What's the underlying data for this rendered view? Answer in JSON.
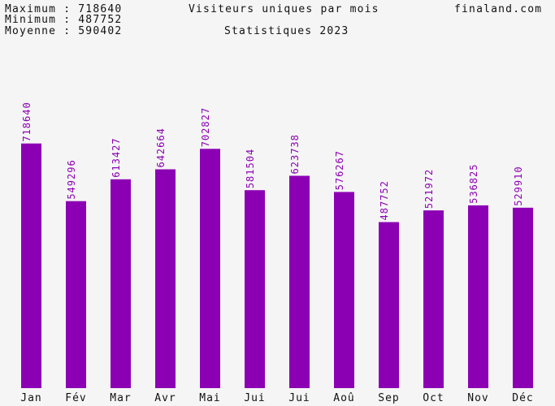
{
  "header": {
    "max_line": "Maximum : 718640",
    "min_line": "Minimum : 487752",
    "avg_line": "Moyenne : 590402",
    "title": "Visiteurs uniques par mois",
    "subtitle": "Statistiques 2023",
    "site": "finaland.com"
  },
  "colors": {
    "bar": "#8c00b4",
    "value_label": "#8c00b4",
    "background": "#f5f5f5",
    "text": "#111111"
  },
  "chart_data": {
    "type": "bar",
    "title": "Visiteurs uniques par mois",
    "subtitle": "Statistiques 2023",
    "categories": [
      "Jan",
      "Fév",
      "Mar",
      "Avr",
      "Mai",
      "Jui",
      "Jui",
      "Aoû",
      "Sep",
      "Oct",
      "Nov",
      "Déc"
    ],
    "values": [
      718640,
      549296,
      613427,
      642664,
      702827,
      581504,
      623738,
      576267,
      487752,
      521972,
      536825,
      529910
    ],
    "value_labels": [
      "718640",
      "549296",
      "613427",
      "642664",
      "702827",
      "581504",
      "623738",
      "576267",
      "487752",
      "521972",
      "536825",
      "529910"
    ],
    "xlabel": "",
    "ylabel": "",
    "ylim": [
      0,
      1140000
    ],
    "grid": false,
    "legend": "none"
  }
}
